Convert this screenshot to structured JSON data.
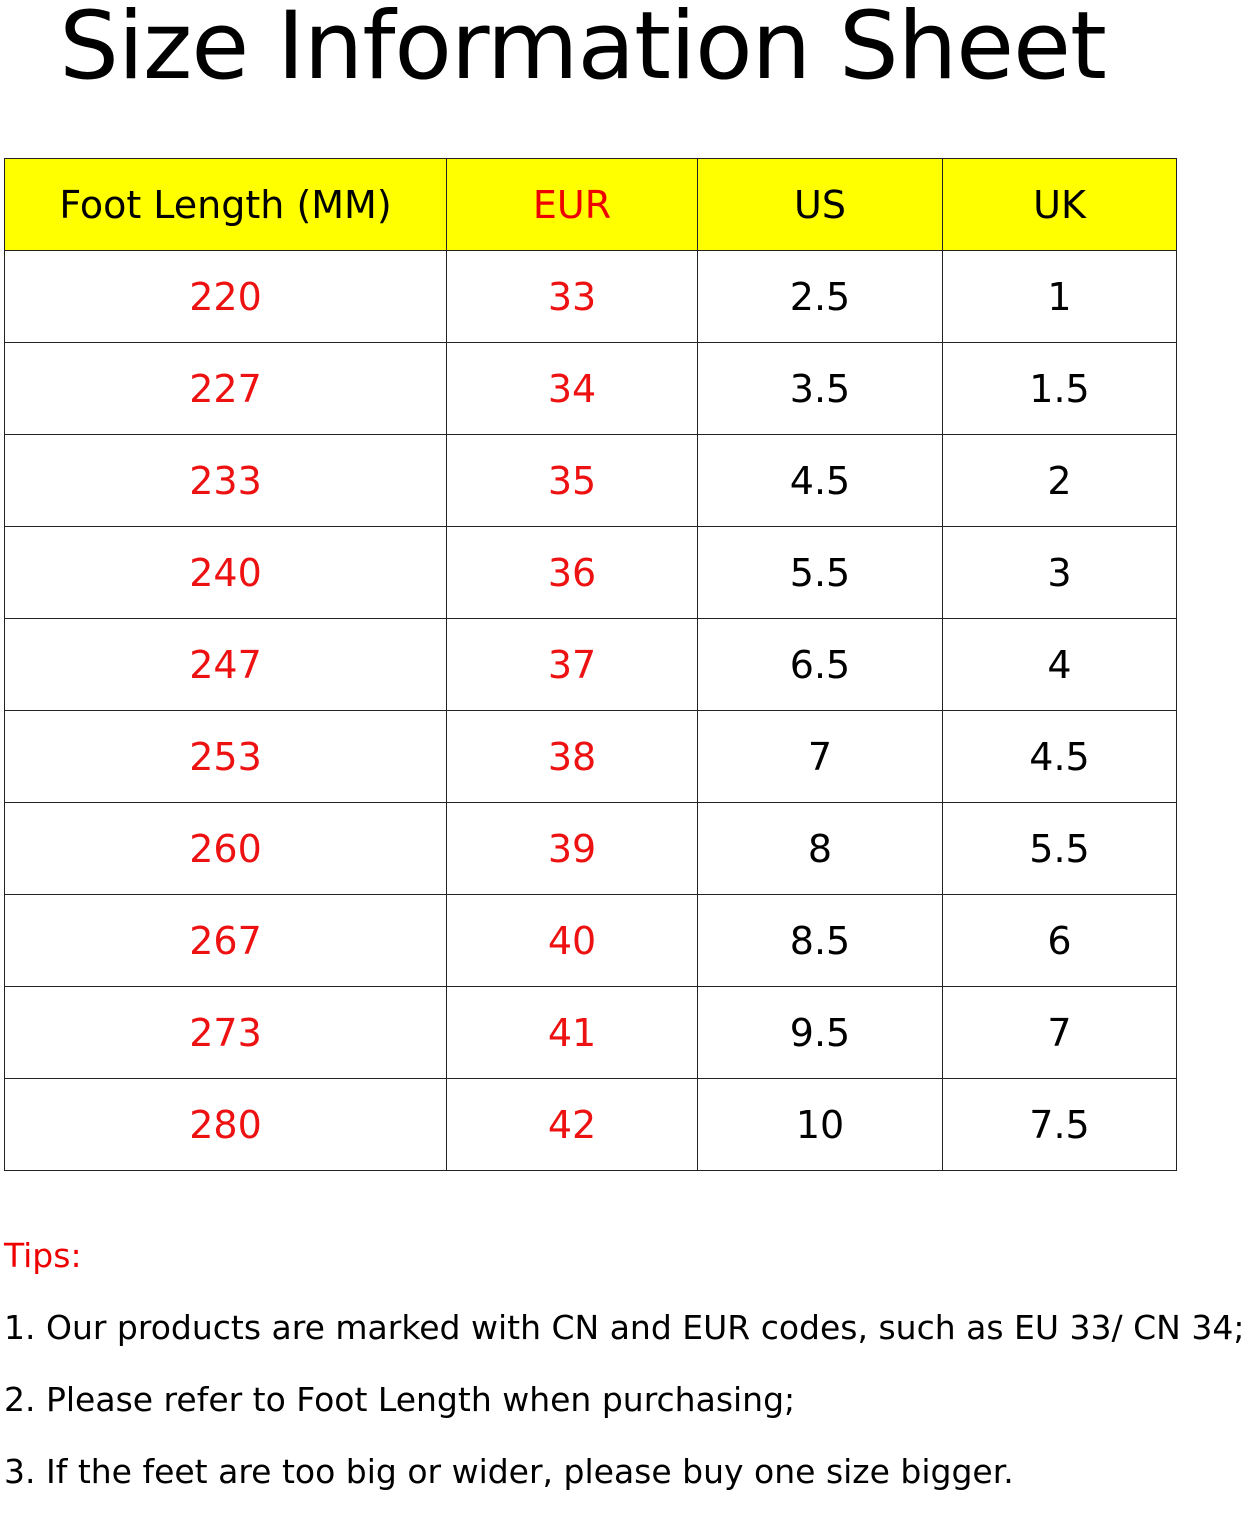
{
  "title": "Size Information Sheet",
  "table": {
    "headers": [
      "Foot Length (MM)",
      "EUR",
      "US",
      "UK"
    ],
    "rows": [
      [
        "220",
        "33",
        "2.5",
        "1"
      ],
      [
        "227",
        "34",
        "3.5",
        "1.5"
      ],
      [
        "233",
        "35",
        "4.5",
        "2"
      ],
      [
        "240",
        "36",
        "5.5",
        "3"
      ],
      [
        "247",
        "37",
        "6.5",
        "4"
      ],
      [
        "253",
        "38",
        "7",
        "4.5"
      ],
      [
        "260",
        "39",
        "8",
        "5.5"
      ],
      [
        "267",
        "40",
        "8.5",
        "6"
      ],
      [
        "273",
        "41",
        "9.5",
        "7"
      ],
      [
        "280",
        "42",
        "10",
        "7.5"
      ]
    ]
  },
  "tips": {
    "label": "Tips:",
    "items": [
      "1. Our products are marked with CN and EUR codes, such as EU 33/ CN 34;",
      "2. Please refer to Foot Length when purchasing;",
      "3. If the feet are too big or wider, please buy one size bigger."
    ]
  },
  "colors": {
    "header_bg": "#ffff00",
    "accent_red": "#ee1111"
  }
}
